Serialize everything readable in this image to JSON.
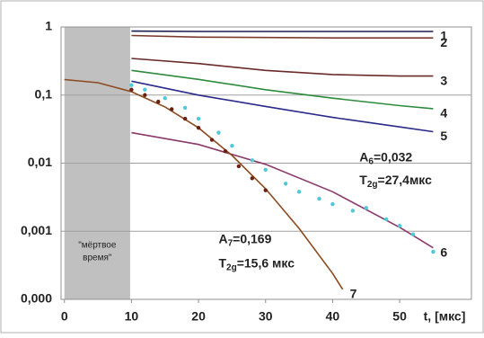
{
  "chart_data": {
    "type": "line",
    "log_y": true,
    "grid": true,
    "xlabel": "t, [мкс]",
    "xlim": [
      -0.5,
      60.7
    ],
    "ylim": [
      0.0001,
      1
    ],
    "xticks": [
      0,
      10,
      20,
      30,
      40,
      50
    ],
    "yticks": [
      1,
      {
        "value": 0.1,
        "label": "0,1"
      },
      {
        "value": 0.01,
        "label": "0,01"
      },
      {
        "value": 0.001,
        "label": "0,001"
      },
      {
        "value": 0.0001,
        "label": "0,000"
      }
    ],
    "shaded_region": {
      "x": [
        0,
        9.8
      ],
      "color": "#c0c0c0",
      "lines": [
        "\"мёртвое",
        "время\""
      ]
    },
    "series": [
      {
        "name": "1",
        "color": "#1c1c50",
        "x": [
          10,
          20,
          30,
          40,
          50,
          55
        ],
        "values": [
          0.87,
          0.86,
          0.86,
          0.86,
          0.86,
          0.86
        ]
      },
      {
        "name": "2",
        "color": "#7a3b2e",
        "x": [
          10,
          20,
          30,
          40,
          50,
          55
        ],
        "values": [
          0.75,
          0.71,
          0.7,
          0.69,
          0.69,
          0.69
        ]
      },
      {
        "name": "3",
        "color": "#6b2a2a",
        "x": [
          10,
          20,
          30,
          40,
          50,
          55
        ],
        "values": [
          0.345,
          0.29,
          0.23,
          0.2,
          0.19,
          0.19
        ]
      },
      {
        "name": "4",
        "color": "#2e8b3e",
        "x": [
          10,
          20,
          30,
          40,
          50,
          55
        ],
        "values": [
          0.23,
          0.17,
          0.12,
          0.09,
          0.07,
          0.063
        ]
      },
      {
        "name": "5",
        "color": "#2a2a8a",
        "x": [
          10,
          20,
          30,
          40,
          50,
          55
        ],
        "values": [
          0.16,
          0.1,
          0.068,
          0.047,
          0.034,
          0.029
        ]
      },
      {
        "name": "6",
        "color": "#8b3a6b",
        "x": [
          10,
          20,
          30,
          40,
          50,
          55
        ],
        "values": [
          0.028,
          0.0188,
          0.0096,
          0.0038,
          0.00114,
          0.00057
        ]
      },
      {
        "name": "7",
        "color": "#8b4a1f",
        "x": [
          0,
          5,
          10,
          15,
          20,
          25,
          30,
          35,
          40,
          41.5
        ],
        "values": [
          0.169,
          0.152,
          0.112,
          0.067,
          0.033,
          0.013,
          0.0042,
          0.0011,
          0.00024,
          0.00014
        ]
      },
      {
        "style": "points",
        "color": "#4fc8d8",
        "x": [
          10,
          12,
          15,
          18,
          20,
          23,
          25,
          28,
          30,
          33,
          35,
          38,
          40,
          43,
          45,
          48,
          50,
          52,
          55
        ],
        "values": [
          0.14,
          0.12,
          0.09,
          0.065,
          0.045,
          0.028,
          0.018,
          0.011,
          0.008,
          0.005,
          0.0038,
          0.003,
          0.0025,
          0.002,
          0.0022,
          0.0015,
          0.0012,
          0.0009,
          0.0005
        ]
      },
      {
        "style": "points",
        "color": "#6b2010",
        "x": [
          10,
          12,
          14,
          16,
          18,
          20,
          22,
          24,
          26,
          28,
          30
        ],
        "values": [
          0.12,
          0.1,
          0.08,
          0.062,
          0.045,
          0.033,
          0.022,
          0.015,
          0.009,
          0.006,
          0.004
        ]
      }
    ],
    "annotations": [
      {
        "main": "A",
        "sub": "6",
        "tail": "=0,032",
        "x": 44,
        "y": 0.012
      },
      {
        "main": "T",
        "sub": "2g",
        "tail": "=27,4мкс",
        "x": 44,
        "y": 0.0055
      },
      {
        "main": "A",
        "sub": "7",
        "tail": "=0,169",
        "x": 23,
        "y": 0.00075
      },
      {
        "main": "T",
        "sub": "2g",
        "tail": "=15,6 мкс",
        "x": 23,
        "y": 0.00033
      }
    ]
  }
}
